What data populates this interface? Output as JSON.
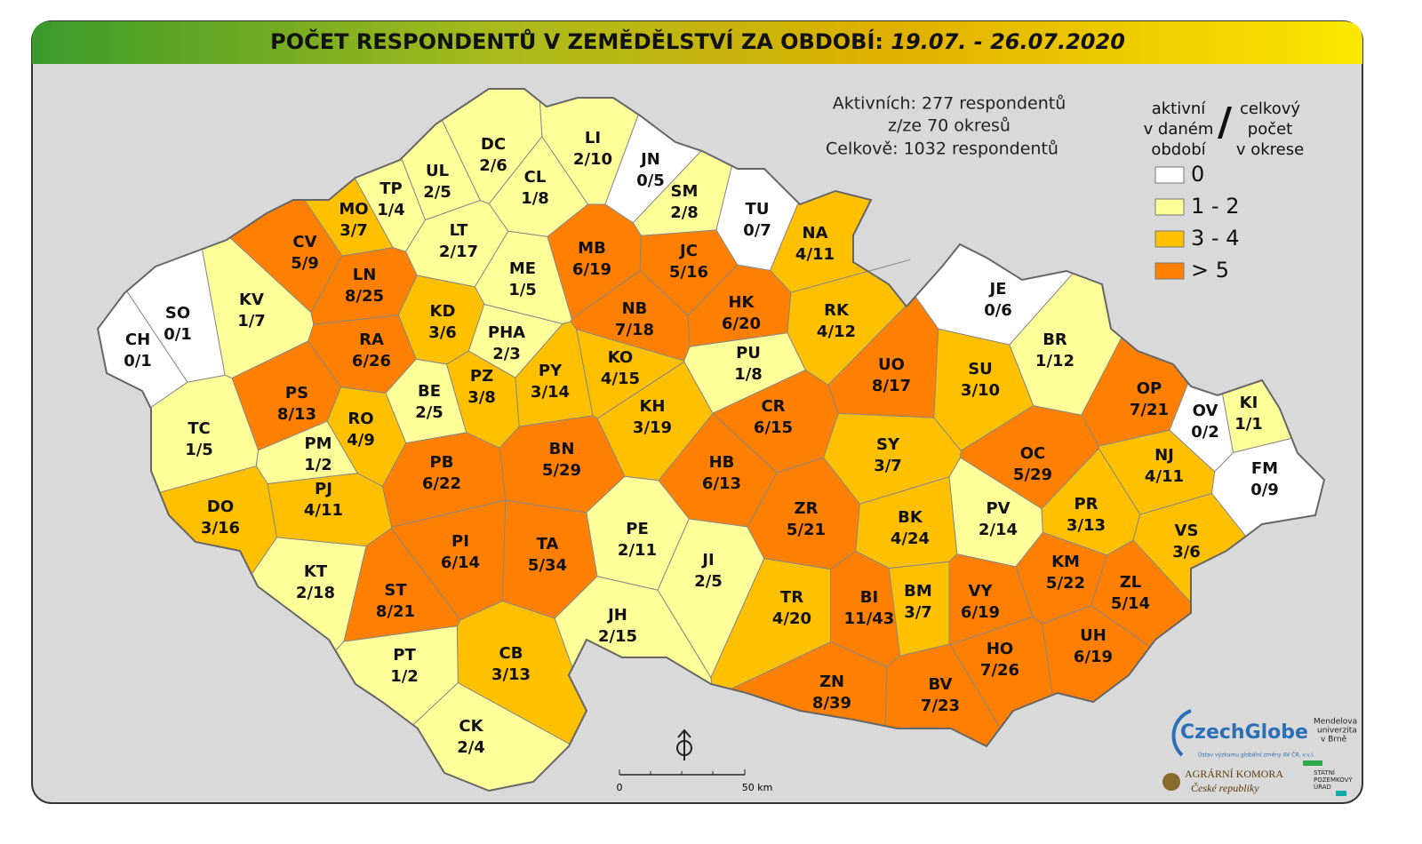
{
  "title": "POČET RESPONDENTŮ V ZEMĚDĚLSTVÍ ZA OBDOBÍ:",
  "period": "19.07. - 26.07.2020",
  "info": [
    "Aktivních: 277 respondentů",
    "z/ze 70 okresů",
    "Celkově: 1032 respondentů"
  ],
  "legend": {
    "left_heading": [
      "aktivní",
      "v daném",
      "období"
    ],
    "separator": "/",
    "right_heading": [
      "celkový",
      "počet",
      "v okrese"
    ],
    "items": [
      {
        "label": "0",
        "color": "#ffffff"
      },
      {
        "label": "1 - 2",
        "color": "#ffff99"
      },
      {
        "label": "3 - 4",
        "color": "#ffc000"
      },
      {
        "label": "> 5",
        "color": "#ff8000"
      }
    ]
  },
  "scale": {
    "start": "0",
    "end": "50 km"
  },
  "logos": {
    "czechglobe": "CzechGlobe",
    "czechglobe_sub": "Ústav výzkumu globální změny AV ČR, v.v.i.",
    "mendelu": [
      "Mendelova",
      "univerzita",
      "v Brně"
    ],
    "agrarni": [
      "AGRÁRNÍ KOMORA",
      "České republiky"
    ],
    "spu": [
      "STÁTNÍ",
      "POZEMKOVÝ",
      "ÚŘAD"
    ]
  },
  "districts": [
    {
      "code": "CH",
      "label": "0/1",
      "color": "#ffffff"
    },
    {
      "code": "SO",
      "label": "0/1",
      "color": "#ffffff"
    },
    {
      "code": "KV",
      "label": "1/7",
      "color": "#ffff99"
    },
    {
      "code": "CV",
      "label": "5/9",
      "color": "#ff8000"
    },
    {
      "code": "MO",
      "label": "3/7",
      "color": "#ffc000"
    },
    {
      "code": "TP",
      "label": "1/4",
      "color": "#ffff99"
    },
    {
      "code": "UL",
      "label": "2/5",
      "color": "#ffff99"
    },
    {
      "code": "DC",
      "label": "2/6",
      "color": "#ffff99"
    },
    {
      "code": "CL",
      "label": "1/8",
      "color": "#ffff99"
    },
    {
      "code": "LI",
      "label": "2/10",
      "color": "#ffff99"
    },
    {
      "code": "JN",
      "label": "0/5",
      "color": "#ffffff"
    },
    {
      "code": "SM",
      "label": "2/8",
      "color": "#ffff99"
    },
    {
      "code": "TU",
      "label": "0/7",
      "color": "#ffffff"
    },
    {
      "code": "NA",
      "label": "4/11",
      "color": "#ffc000"
    },
    {
      "code": "LT",
      "label": "2/17",
      "color": "#ffff99"
    },
    {
      "code": "LN",
      "label": "8/25",
      "color": "#ff8000"
    },
    {
      "code": "MB",
      "label": "6/19",
      "color": "#ff8000"
    },
    {
      "code": "JC",
      "label": "5/16",
      "color": "#ff8000"
    },
    {
      "code": "ME",
      "label": "1/5",
      "color": "#ffff99"
    },
    {
      "code": "KD",
      "label": "3/6",
      "color": "#ffc000"
    },
    {
      "code": "NB",
      "label": "7/18",
      "color": "#ff8000"
    },
    {
      "code": "HK",
      "label": "6/20",
      "color": "#ff8000"
    },
    {
      "code": "RK",
      "label": "4/12",
      "color": "#ffc000"
    },
    {
      "code": "JE",
      "label": "0/6",
      "color": "#ffffff"
    },
    {
      "code": "RA",
      "label": "6/26",
      "color": "#ff8000"
    },
    {
      "code": "PHA",
      "label": "2/3",
      "color": "#ffff99"
    },
    {
      "code": "PU",
      "label": "1/8",
      "color": "#ffff99"
    },
    {
      "code": "BR",
      "label": "1/12",
      "color": "#ffff99"
    },
    {
      "code": "UO",
      "label": "8/17",
      "color": "#ff8000"
    },
    {
      "code": "SU",
      "label": "3/10",
      "color": "#ffc000"
    },
    {
      "code": "OP",
      "label": "7/21",
      "color": "#ff8000"
    },
    {
      "code": "PS",
      "label": "8/13",
      "color": "#ff8000"
    },
    {
      "code": "BE",
      "label": "2/5",
      "color": "#ffff99"
    },
    {
      "code": "PZ",
      "label": "3/8",
      "color": "#ffc000"
    },
    {
      "code": "PY",
      "label": "3/14",
      "color": "#ffc000"
    },
    {
      "code": "KO",
      "label": "4/15",
      "color": "#ffc000"
    },
    {
      "code": "KH",
      "label": "3/19",
      "color": "#ffc000"
    },
    {
      "code": "CR",
      "label": "6/15",
      "color": "#ff8000"
    },
    {
      "code": "OV",
      "label": "0/2",
      "color": "#ffffff"
    },
    {
      "code": "KI",
      "label": "1/1",
      "color": "#ffff99"
    },
    {
      "code": "TC",
      "label": "1/5",
      "color": "#ffff99"
    },
    {
      "code": "RO",
      "label": "4/9",
      "color": "#ffc000"
    },
    {
      "code": "PM",
      "label": "1/2",
      "color": "#ffff99"
    },
    {
      "code": "SY",
      "label": "3/7",
      "color": "#ffc000"
    },
    {
      "code": "OC",
      "label": "5/29",
      "color": "#ff8000"
    },
    {
      "code": "NJ",
      "label": "4/11",
      "color": "#ffc000"
    },
    {
      "code": "FM",
      "label": "0/9",
      "color": "#ffffff"
    },
    {
      "code": "BN",
      "label": "5/29",
      "color": "#ff8000"
    },
    {
      "code": "PB",
      "label": "6/22",
      "color": "#ff8000"
    },
    {
      "code": "HB",
      "label": "6/13",
      "color": "#ff8000"
    },
    {
      "code": "PJ",
      "label": "4/11",
      "color": "#ffc000"
    },
    {
      "code": "DO",
      "label": "3/16",
      "color": "#ffc000"
    },
    {
      "code": "ZR",
      "label": "5/21",
      "color": "#ff8000"
    },
    {
      "code": "BK",
      "label": "4/24",
      "color": "#ffc000"
    },
    {
      "code": "PV",
      "label": "2/14",
      "color": "#ffff99"
    },
    {
      "code": "PR",
      "label": "3/13",
      "color": "#ffc000"
    },
    {
      "code": "VS",
      "label": "3/6",
      "color": "#ffc000"
    },
    {
      "code": "PE",
      "label": "2/11",
      "color": "#ffff99"
    },
    {
      "code": "JI",
      "label": "2/5",
      "color": "#ffff99"
    },
    {
      "code": "PI",
      "label": "6/14",
      "color": "#ff8000"
    },
    {
      "code": "TA",
      "label": "5/34",
      "color": "#ff8000"
    },
    {
      "code": "KT",
      "label": "2/18",
      "color": "#ffff99"
    },
    {
      "code": "KM",
      "label": "5/22",
      "color": "#ff8000"
    },
    {
      "code": "ZL",
      "label": "5/14",
      "color": "#ff8000"
    },
    {
      "code": "ST",
      "label": "8/21",
      "color": "#ff8000"
    },
    {
      "code": "TR",
      "label": "4/20",
      "color": "#ffc000"
    },
    {
      "code": "BI",
      "label": "11/43",
      "color": "#ff8000"
    },
    {
      "code": "BM",
      "label": "3/7",
      "color": "#ffc000"
    },
    {
      "code": "VY",
      "label": "6/19",
      "color": "#ff8000"
    },
    {
      "code": "JH",
      "label": "2/15",
      "color": "#ffff99"
    },
    {
      "code": "UH",
      "label": "6/19",
      "color": "#ff8000"
    },
    {
      "code": "HO",
      "label": "7/26",
      "color": "#ff8000"
    },
    {
      "code": "CB",
      "label": "3/13",
      "color": "#ffc000"
    },
    {
      "code": "PT",
      "label": "1/2",
      "color": "#ffff99"
    },
    {
      "code": "ZN",
      "label": "8/39",
      "color": "#ff8000"
    },
    {
      "code": "BV",
      "label": "7/23",
      "color": "#ff8000"
    },
    {
      "code": "CK",
      "label": "2/4",
      "color": "#ffff99"
    }
  ]
}
